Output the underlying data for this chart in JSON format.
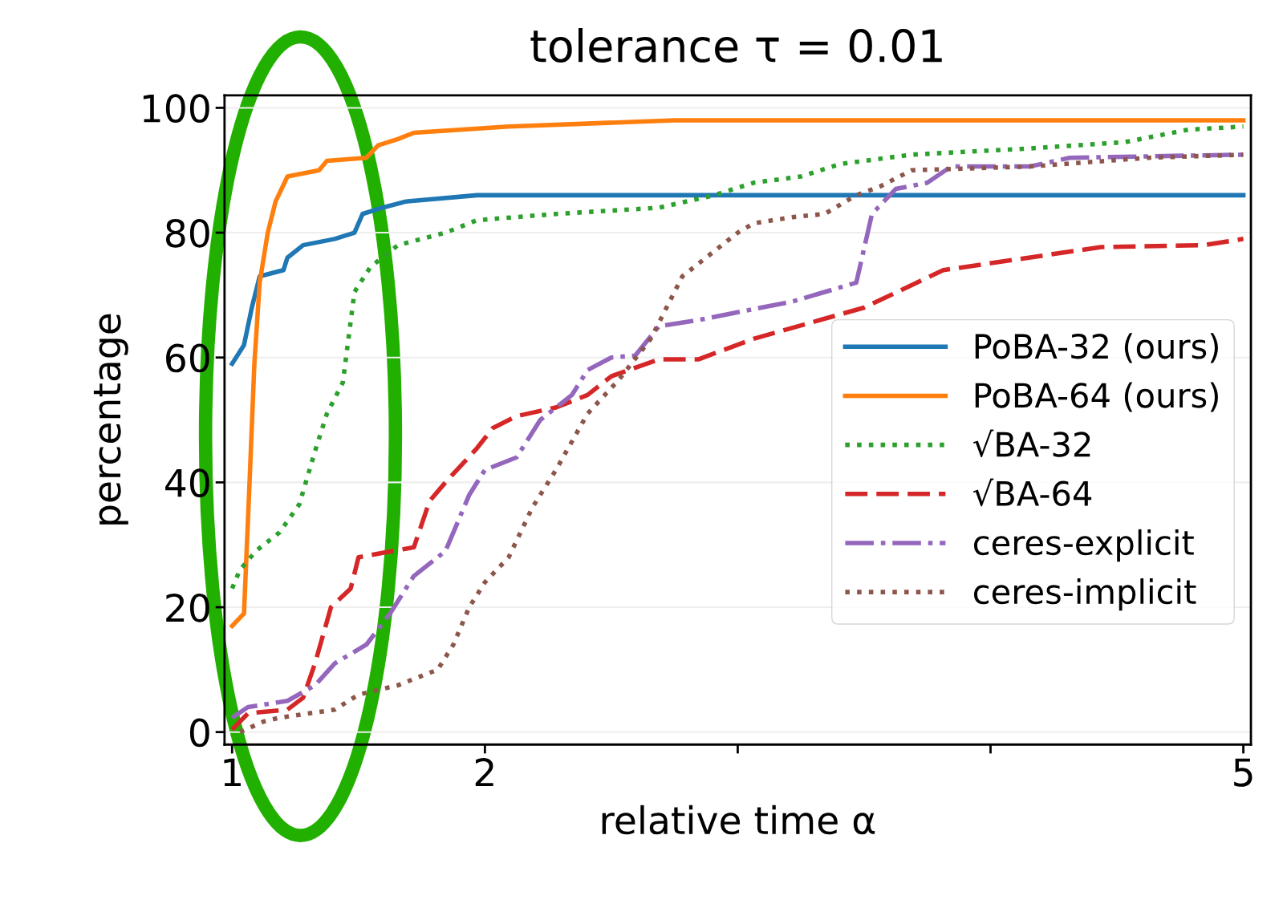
{
  "chart_data": {
    "type": "line",
    "title": "tolerance τ = 0.01",
    "xlabel": "relative time α",
    "ylabel": "percentage",
    "xlim": [
      0.97,
      5.03
    ],
    "xticks": [
      1,
      2,
      {
        "value": 3,
        "label": null
      },
      {
        "value": 4,
        "label": null
      },
      5
    ],
    "ylim": [
      -2,
      102
    ],
    "yticks": [
      0,
      20,
      40,
      60,
      80,
      100
    ],
    "grid": "y",
    "legend": "right",
    "series": [
      {
        "name": "PoBA-32 (ours)",
        "color": "#1f77b4",
        "line_style": "solid",
        "x": [
          1.0,
          1.047,
          1.078,
          1.109,
          1.203,
          1.219,
          1.281,
          1.406,
          1.484,
          1.516,
          1.594,
          1.688,
          1.969,
          5.0
        ],
        "values": [
          59,
          62,
          68,
          73,
          74,
          76,
          78,
          79,
          80,
          83,
          84,
          85,
          86,
          86
        ]
      },
      {
        "name": "PoBA-64 (ours)",
        "color": "#ff7f0e",
        "line_style": "solid",
        "x": [
          1.0,
          1.047,
          1.069,
          1.088,
          1.109,
          1.141,
          1.172,
          1.219,
          1.344,
          1.375,
          1.531,
          1.578,
          1.656,
          1.719,
          2.094,
          2.75,
          5.0
        ],
        "values": [
          17,
          19,
          40,
          59,
          72,
          80,
          85,
          89,
          90,
          91.5,
          92,
          94,
          95,
          96,
          97,
          98,
          98
        ]
      },
      {
        "name": "√BA-32",
        "color": "#2ca02c",
        "line_style": "dotted",
        "x": [
          1.0,
          1.031,
          1.094,
          1.188,
          1.266,
          1.328,
          1.375,
          1.438,
          1.484,
          1.547,
          1.656,
          1.844,
          1.969,
          2.281,
          2.688,
          2.906,
          3.063,
          3.25,
          3.406,
          3.688,
          4.156,
          4.531,
          4.781,
          5.0
        ],
        "values": [
          23,
          26,
          29,
          32,
          36.5,
          45,
          51,
          56,
          70.5,
          74.5,
          78,
          80,
          82,
          83,
          84,
          86,
          88,
          89,
          91,
          92.5,
          93.5,
          94.5,
          96.5,
          97
        ]
      },
      {
        "name": "√BA-64",
        "color": "#d62728",
        "line_style": "dashed",
        "x": [
          1.0,
          1.063,
          1.219,
          1.281,
          1.328,
          1.391,
          1.469,
          1.5,
          1.719,
          1.781,
          1.844,
          1.969,
          2.031,
          2.125,
          2.281,
          2.406,
          2.5,
          2.688,
          2.844,
          3.063,
          3.5,
          3.813,
          4.438,
          4.844,
          5.0
        ],
        "values": [
          0.4,
          3,
          3.6,
          5.5,
          11,
          20,
          23,
          28,
          29.6,
          37,
          40,
          45.5,
          48.7,
          50.6,
          52,
          54,
          57,
          59.7,
          59.7,
          63,
          68,
          74,
          77.7,
          78,
          79
        ]
      },
      {
        "name": "ceres-explicit",
        "color": "#9467bd",
        "line_style": "dashdot",
        "x": [
          1.0,
          1.063,
          1.219,
          1.328,
          1.406,
          1.531,
          1.625,
          1.719,
          1.844,
          1.938,
          2.0,
          2.125,
          2.219,
          2.344,
          2.406,
          2.5,
          2.594,
          2.688,
          2.844,
          3.219,
          3.469,
          3.531,
          3.625,
          3.75,
          3.844,
          4.156,
          4.313,
          5.0
        ],
        "values": [
          2.3,
          4,
          5,
          7.5,
          11,
          14,
          19,
          25,
          29,
          38,
          42,
          44,
          50,
          54,
          58,
          60,
          60.3,
          65,
          66,
          69,
          72,
          83,
          87,
          88,
          90.6,
          90.6,
          92,
          92.5
        ]
      },
      {
        "name": "ceres-implicit",
        "color": "#8c564b",
        "line_style": "dotted",
        "x": [
          1.031,
          1.125,
          1.188,
          1.406,
          1.5,
          1.656,
          1.813,
          1.875,
          1.938,
          2.0,
          2.094,
          2.188,
          2.281,
          2.406,
          2.531,
          2.656,
          2.781,
          2.906,
          3.0,
          3.063,
          3.219,
          3.344,
          3.469,
          3.563,
          3.688,
          4.156,
          4.625,
          5.0
        ],
        "values": [
          0,
          1.7,
          2.3,
          3.6,
          6,
          7.5,
          10,
          14,
          20,
          24,
          28,
          36,
          42,
          51,
          56.5,
          63,
          73,
          77,
          80,
          81.5,
          82.5,
          83,
          86,
          87.4,
          90,
          90.6,
          92,
          92.5
        ]
      }
    ]
  }
}
